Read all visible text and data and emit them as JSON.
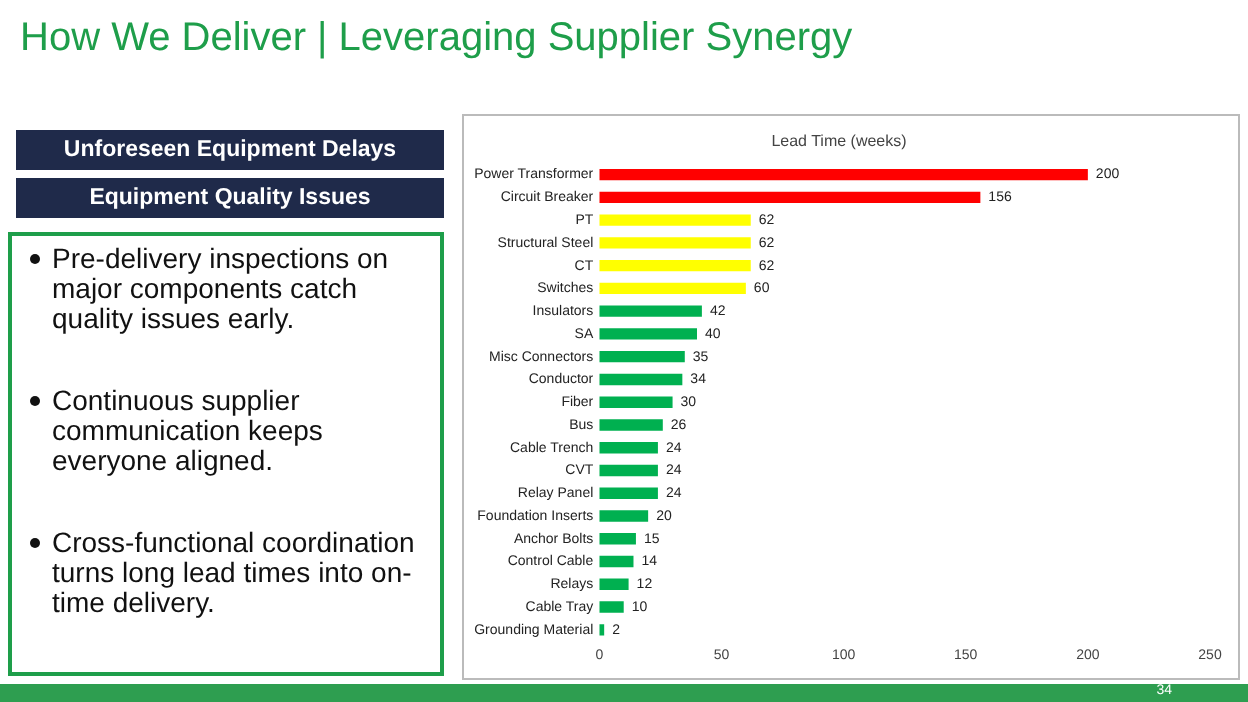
{
  "chart_data": {
    "type": "bar",
    "orientation": "horizontal",
    "title": "How We Deliver | Leveraging Supplier Synergy",
    "subtitle": "Lead Time (weeks)",
    "categories": [
      "Power Transformer",
      "Circuit Breaker",
      "PT",
      "Structural Steel",
      "CT",
      "Switches",
      "Insulators",
      "SA",
      "Misc Connectors",
      "Conductor",
      "Fiber",
      "Bus",
      "Cable Trench",
      "CVT",
      "Relay Panel",
      "Foundation Inserts",
      "Anchor Bolts",
      "Control Cable",
      "Relays",
      "Cable Tray",
      "Grounding Material"
    ],
    "values": [
      200,
      156,
      62,
      62,
      62,
      60,
      42,
      40,
      35,
      34,
      30,
      26,
      24,
      24,
      24,
      20,
      15,
      14,
      12,
      10,
      2
    ],
    "colors": [
      "#ff0000",
      "#ff0000",
      "#ffff00",
      "#ffff00",
      "#ffff00",
      "#ffff00",
      "#00b050",
      "#00b050",
      "#00b050",
      "#00b050",
      "#00b050",
      "#00b050",
      "#00b050",
      "#00b050",
      "#00b050",
      "#00b050",
      "#00b050",
      "#00b050",
      "#00b050",
      "#00b050",
      "#00b050"
    ],
    "xlim": [
      0,
      250
    ],
    "xticks": [
      0,
      50,
      100,
      150,
      200,
      250
    ],
    "grid": false,
    "legend": false,
    "data_labels": true,
    "annotations": [
      "Unforeseen Equipment Delays",
      "Equipment Quality Issues",
      "Pre-delivery inspections on major components catch quality issues early.",
      "Continuous supplier communication keeps everyone aligned.",
      "Cross-functional coordination turns long lead times into on-time delivery.",
      "34"
    ]
  }
}
